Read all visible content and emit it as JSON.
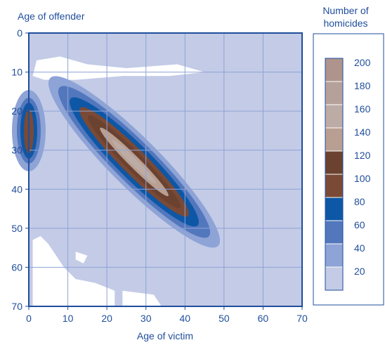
{
  "chart_data": {
    "type": "heatmap",
    "title": "",
    "xlabel": "Age of victim",
    "ylabel": "Age of offender",
    "xlim": [
      0,
      70
    ],
    "ylim": [
      70,
      0
    ],
    "x_ticks": [
      "0",
      "10",
      "20",
      "30",
      "40",
      "50",
      "60",
      "70"
    ],
    "y_ticks": [
      "0",
      "10",
      "20",
      "30",
      "40",
      "50",
      "60",
      "70"
    ],
    "grid": true,
    "legend": {
      "title": "Number of homicides",
      "title_lines": [
        "Number of",
        "homicides"
      ],
      "placement": "right",
      "levels": [
        {
          "label": "200",
          "color": "#ae948c"
        },
        {
          "label": "180",
          "color": "#b6a19a"
        },
        {
          "label": "160",
          "color": "#bdaba6"
        },
        {
          "label": "140",
          "color": "#b89f92"
        },
        {
          "label": "120",
          "color": "#6b4130"
        },
        {
          "label": "100",
          "color": "#7a4a36"
        },
        {
          "label": "80",
          "color": "#0d57a6"
        },
        {
          "label": "60",
          "color": "#5277bd"
        },
        {
          "label": "40",
          "color": "#8ea3d6"
        },
        {
          "label": "20",
          "color": "#c3cbe6"
        }
      ]
    },
    "clusters": [
      {
        "x_from": [
          16,
          22
        ],
        "x_to": [
          38,
          44
        ],
        "y_from": [
          18,
          20
        ],
        "y_to": [
          40,
          44
        ],
        "peak": 200
      },
      {
        "x_from": [
          0,
          20
        ],
        "x_to": [
          0,
          30
        ],
        "peak": 120
      }
    ],
    "colors": {
      "axis": "#1f4e9c",
      "grid": "#8ea3d6",
      "background_level": "#c3cbe6",
      "empty": "#ffffff"
    }
  }
}
